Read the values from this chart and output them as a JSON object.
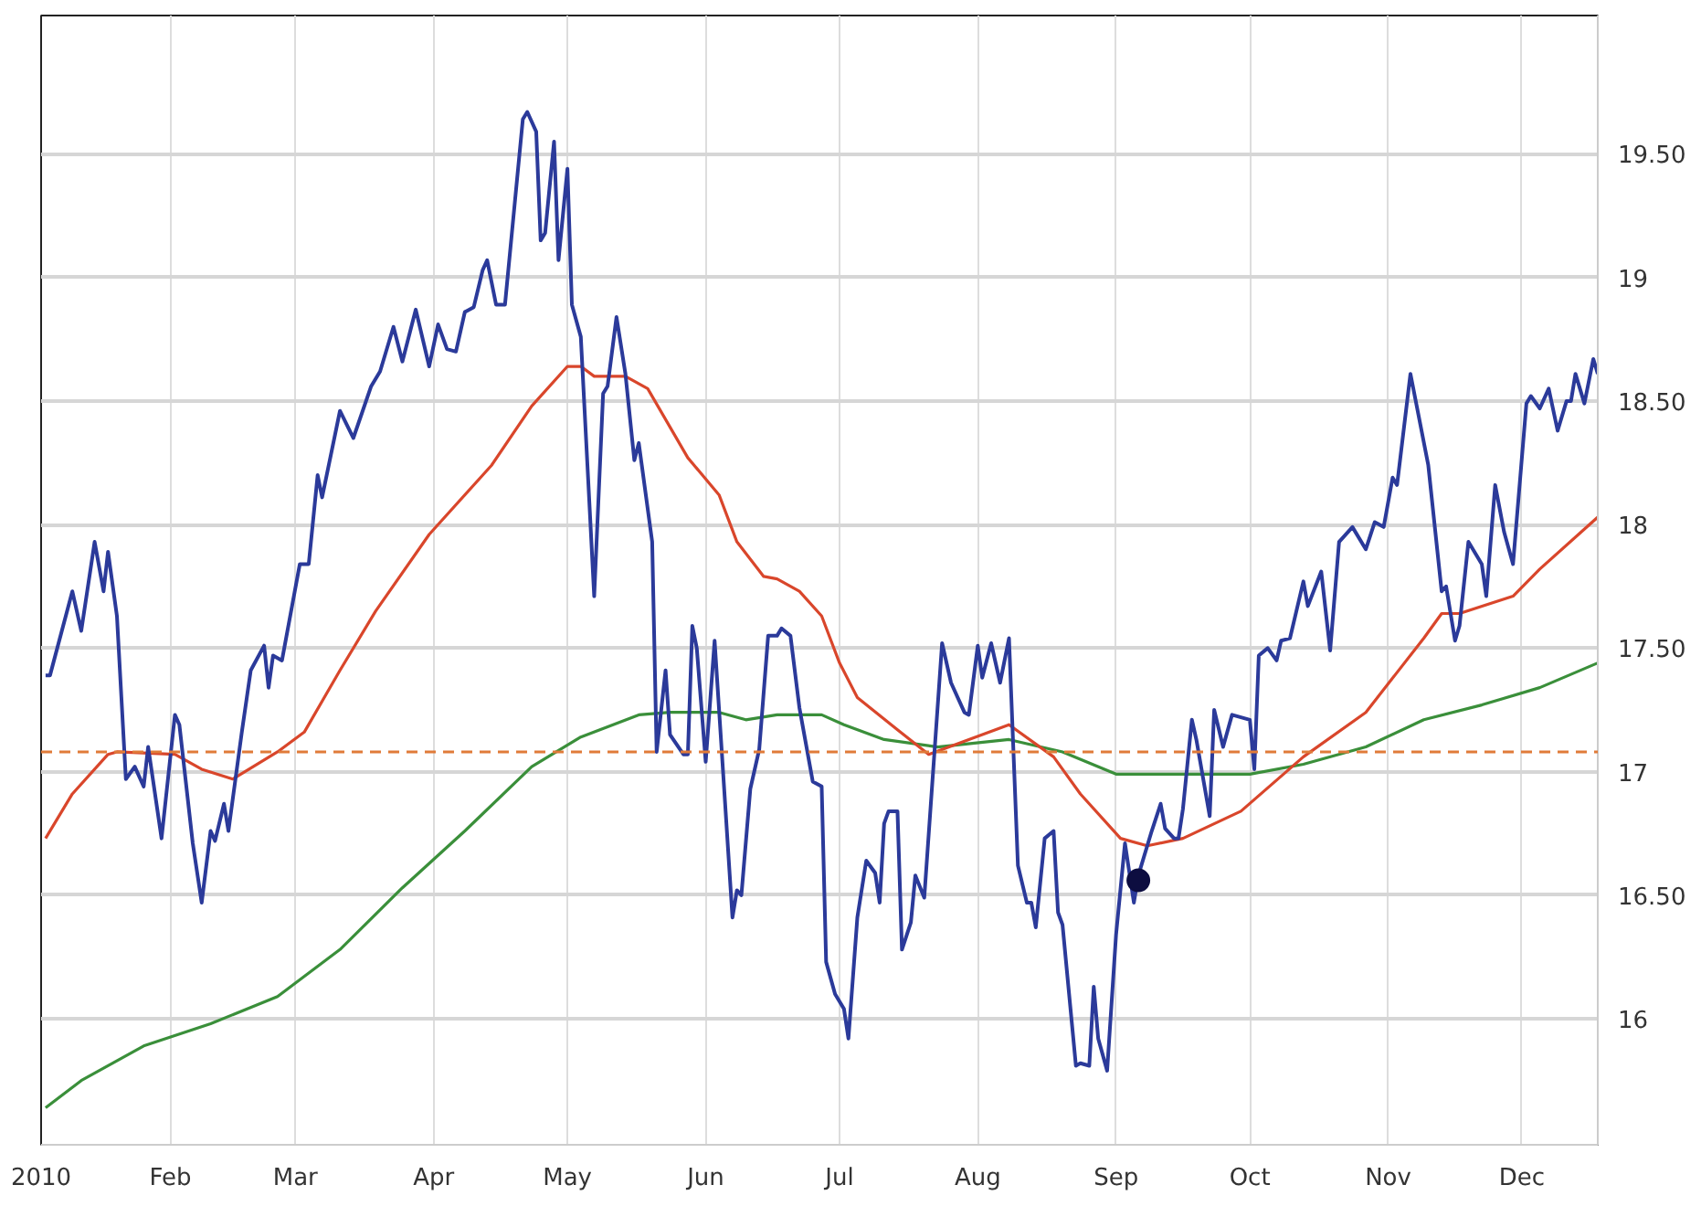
{
  "chart_data": {
    "type": "line",
    "line_style": "solid",
    "grid": true,
    "xlim": [
      "2010-01-03",
      "2010-12-18"
    ],
    "xticks": [
      {
        "value": "2010-01-03",
        "label": "2010"
      },
      {
        "value": "2010-02-01",
        "label": "Feb"
      },
      {
        "value": "2010-03-01",
        "label": "Mar"
      },
      {
        "value": "2010-04-01",
        "label": "Apr"
      },
      {
        "value": "2010-05-01",
        "label": "May"
      },
      {
        "value": "2010-06-01",
        "label": "Jun"
      },
      {
        "value": "2010-07-01",
        "label": "Jul"
      },
      {
        "value": "2010-08-01",
        "label": "Aug"
      },
      {
        "value": "2010-09-01",
        "label": "Sep"
      },
      {
        "value": "2010-10-01",
        "label": "Oct"
      },
      {
        "value": "2010-11-01",
        "label": "Nov"
      },
      {
        "value": "2010-12-01",
        "label": "Dec"
      }
    ],
    "ylim": [
      15.49,
      20.06
    ],
    "yticks": [
      16,
      {
        "value": 16.5,
        "label": "16.50"
      },
      17,
      {
        "value": 17.5,
        "label": "17.50"
      },
      18,
      {
        "value": 18.5,
        "label": "18.50"
      },
      19,
      {
        "value": 19.5,
        "label": "19.50"
      }
    ],
    "ref_lines": [
      {
        "axis": "y",
        "value": 17.08,
        "color": "#e07b39",
        "line_style": "dashed"
      }
    ],
    "series": [
      {
        "color": "#3a8f3a",
        "x": [
          "2010-01-04",
          "2010-01-12",
          "2010-01-26",
          "2010-02-10",
          "2010-02-25",
          "2010-03-11",
          "2010-03-25",
          "2010-04-08",
          "2010-04-23",
          "2010-05-04",
          "2010-05-17",
          "2010-05-24",
          "2010-06-04",
          "2010-06-10",
          "2010-06-17",
          "2010-06-27",
          "2010-07-02",
          "2010-07-11",
          "2010-07-23",
          "2010-08-08",
          "2010-08-20",
          "2010-09-01",
          "2010-09-07",
          "2010-10-01",
          "2010-10-13",
          "2010-10-27",
          "2010-11-09",
          "2010-11-22",
          "2010-12-05",
          "2010-12-18"
        ],
        "values": [
          15.64,
          15.75,
          15.89,
          15.98,
          16.09,
          16.28,
          16.53,
          16.76,
          17.02,
          17.14,
          17.23,
          17.24,
          17.24,
          17.21,
          17.23,
          17.23,
          17.19,
          17.13,
          17.1,
          17.13,
          17.08,
          16.99,
          16.99,
          16.99,
          17.03,
          17.1,
          17.21,
          17.27,
          17.34,
          17.44
        ]
      },
      {
        "color": "#d9462b",
        "x": [
          "2010-01-04",
          "2010-01-10",
          "2010-01-18",
          "2010-01-20",
          "2010-02-02",
          "2010-02-08",
          "2010-02-15",
          "2010-02-25",
          "2010-03-03",
          "2010-03-11",
          "2010-03-19",
          "2010-03-31",
          "2010-04-14",
          "2010-04-23",
          "2010-05-01",
          "2010-05-04",
          "2010-05-07",
          "2010-05-14",
          "2010-05-19",
          "2010-05-28",
          "2010-06-04",
          "2010-06-08",
          "2010-06-14",
          "2010-06-17",
          "2010-06-22",
          "2010-06-27",
          "2010-07-01",
          "2010-07-05",
          "2010-07-14",
          "2010-07-21",
          "2010-07-30",
          "2010-08-08",
          "2010-08-18",
          "2010-08-24",
          "2010-09-02",
          "2010-09-08",
          "2010-09-16",
          "2010-09-29",
          "2010-10-13",
          "2010-10-27",
          "2010-11-09",
          "2010-11-13",
          "2010-11-17",
          "2010-11-29",
          "2010-12-05",
          "2010-12-18"
        ],
        "values": [
          16.73,
          16.91,
          17.07,
          17.08,
          17.07,
          17.01,
          16.97,
          17.08,
          17.16,
          17.41,
          17.65,
          17.96,
          18.24,
          18.48,
          18.64,
          18.64,
          18.6,
          18.6,
          18.55,
          18.27,
          18.12,
          17.93,
          17.79,
          17.78,
          17.73,
          17.63,
          17.44,
          17.3,
          17.17,
          17.07,
          17.13,
          17.19,
          17.06,
          16.91,
          16.73,
          16.7,
          16.73,
          16.84,
          17.06,
          17.24,
          17.54,
          17.64,
          17.64,
          17.71,
          17.82,
          18.03
        ]
      },
      {
        "color": "#2b3a9a",
        "x": [
          "2010-01-04",
          "2010-01-05",
          "2010-01-10",
          "2010-01-12",
          "2010-01-15",
          "2010-01-17",
          "2010-01-18",
          "2010-01-20",
          "2010-01-22",
          "2010-01-24",
          "2010-01-26",
          "2010-01-27",
          "2010-01-30",
          "2010-02-02",
          "2010-02-03",
          "2010-02-06",
          "2010-02-08",
          "2010-02-10",
          "2010-02-11",
          "2010-02-13",
          "2010-02-14",
          "2010-02-17",
          "2010-02-19",
          "2010-02-22",
          "2010-02-23",
          "2010-02-24",
          "2010-02-26",
          "2010-03-02",
          "2010-03-04",
          "2010-03-06",
          "2010-03-07",
          "2010-03-11",
          "2010-03-14",
          "2010-03-18",
          "2010-03-20",
          "2010-03-23",
          "2010-03-25",
          "2010-03-28",
          "2010-03-31",
          "2010-04-02",
          "2010-04-04",
          "2010-04-06",
          "2010-04-08",
          "2010-04-10",
          "2010-04-12",
          "2010-04-13",
          "2010-04-15",
          "2010-04-17",
          "2010-04-21",
          "2010-04-22",
          "2010-04-24",
          "2010-04-25",
          "2010-04-26",
          "2010-04-28",
          "2010-04-29",
          "2010-05-01",
          "2010-05-02",
          "2010-05-04",
          "2010-05-07",
          "2010-05-09",
          "2010-05-10",
          "2010-05-12",
          "2010-05-14",
          "2010-05-16",
          "2010-05-17",
          "2010-05-20",
          "2010-05-21",
          "2010-05-23",
          "2010-05-24",
          "2010-05-27",
          "2010-05-28",
          "2010-05-29",
          "2010-05-30",
          "2010-06-01",
          "2010-06-03",
          "2010-06-07",
          "2010-06-08",
          "2010-06-09",
          "2010-06-11",
          "2010-06-13",
          "2010-06-15",
          "2010-06-17",
          "2010-06-18",
          "2010-06-20",
          "2010-06-22",
          "2010-06-25",
          "2010-06-27",
          "2010-06-28",
          "2010-06-30",
          "2010-07-02",
          "2010-07-03",
          "2010-07-05",
          "2010-07-07",
          "2010-07-09",
          "2010-07-10",
          "2010-07-11",
          "2010-07-12",
          "2010-07-14",
          "2010-07-15",
          "2010-07-17",
          "2010-07-18",
          "2010-07-20",
          "2010-07-24",
          "2010-07-26",
          "2010-07-29",
          "2010-07-30",
          "2010-08-01",
          "2010-08-02",
          "2010-08-04",
          "2010-08-06",
          "2010-08-08",
          "2010-08-10",
          "2010-08-12",
          "2010-08-13",
          "2010-08-14",
          "2010-08-16",
          "2010-08-18",
          "2010-08-19",
          "2010-08-20",
          "2010-08-23",
          "2010-08-24",
          "2010-08-26",
          "2010-08-27",
          "2010-08-28",
          "2010-08-30",
          "2010-09-01",
          "2010-09-03",
          "2010-09-05",
          "2010-09-06",
          "2010-09-09",
          "2010-09-11",
          "2010-09-12",
          "2010-09-14",
          "2010-09-15",
          "2010-09-16",
          "2010-09-18",
          "2010-09-19",
          "2010-09-22",
          "2010-09-23",
          "2010-09-25",
          "2010-09-27",
          "2010-10-01",
          "2010-10-02",
          "2010-10-03",
          "2010-10-05",
          "2010-10-07",
          "2010-10-08",
          "2010-10-10",
          "2010-10-13",
          "2010-10-14",
          "2010-10-17",
          "2010-10-19",
          "2010-10-21",
          "2010-10-24",
          "2010-10-27",
          "2010-10-29",
          "2010-10-31",
          "2010-11-02",
          "2010-11-03",
          "2010-11-06",
          "2010-11-10",
          "2010-11-13",
          "2010-11-14",
          "2010-11-16",
          "2010-11-17",
          "2010-11-19",
          "2010-11-22",
          "2010-11-23",
          "2010-11-25",
          "2010-11-27",
          "2010-11-29",
          "2010-12-02",
          "2010-12-03",
          "2010-12-05",
          "2010-12-07",
          "2010-12-09",
          "2010-12-11",
          "2010-12-12",
          "2010-12-13",
          "2010-12-15",
          "2010-12-17",
          "2010-12-18"
        ],
        "values": [
          17.39,
          17.39,
          17.73,
          17.57,
          17.93,
          17.73,
          17.89,
          17.63,
          16.97,
          17.02,
          16.94,
          17.1,
          16.73,
          17.23,
          17.19,
          16.71,
          16.47,
          16.76,
          16.72,
          16.87,
          16.76,
          17.16,
          17.41,
          17.51,
          17.34,
          17.47,
          17.45,
          17.84,
          17.84,
          18.2,
          18.11,
          18.46,
          18.35,
          18.56,
          18.62,
          18.8,
          18.66,
          18.87,
          18.64,
          18.81,
          18.71,
          18.7,
          18.86,
          18.88,
          19.03,
          19.07,
          18.89,
          18.89,
          19.64,
          19.67,
          19.59,
          19.15,
          19.18,
          19.55,
          19.07,
          19.44,
          18.89,
          18.76,
          17.71,
          18.53,
          18.56,
          18.84,
          18.61,
          18.26,
          18.33,
          17.93,
          17.08,
          17.41,
          17.15,
          17.07,
          17.07,
          17.59,
          17.5,
          17.04,
          17.53,
          16.41,
          16.52,
          16.5,
          16.93,
          17.09,
          17.55,
          17.55,
          17.58,
          17.55,
          17.26,
          16.96,
          16.94,
          16.23,
          16.1,
          16.04,
          15.92,
          16.41,
          16.64,
          16.59,
          16.47,
          16.79,
          16.84,
          16.84,
          16.28,
          16.39,
          16.58,
          16.49,
          17.52,
          17.36,
          17.24,
          17.23,
          17.51,
          17.38,
          17.52,
          17.36,
          17.54,
          16.62,
          16.47,
          16.47,
          16.37,
          16.73,
          16.76,
          16.43,
          16.38,
          15.81,
          15.82,
          15.81,
          16.13,
          15.92,
          15.79,
          16.34,
          16.71,
          16.47,
          16.58,
          16.76,
          16.87,
          16.77,
          16.73,
          16.73,
          16.85,
          17.21,
          17.13,
          16.82,
          17.25,
          17.1,
          17.23,
          17.21,
          17.01,
          17.47,
          17.5,
          17.45,
          17.53,
          17.54,
          17.77,
          17.67,
          17.81,
          17.49,
          17.93,
          17.99,
          17.9,
          18.01,
          17.99,
          18.19,
          18.16,
          18.61,
          18.24,
          17.73,
          17.75,
          17.53,
          17.59,
          17.93,
          17.84,
          17.71,
          18.16,
          17.97,
          17.84,
          18.49,
          18.52,
          18.47,
          18.55,
          18.38,
          18.5,
          18.5,
          18.61,
          18.49,
          18.67,
          18.61
        ]
      },
      {
        "type": "scatter",
        "marker": "circle",
        "color": "#0d0d40",
        "x": [
          "2010-09-06"
        ],
        "values": [
          16.56
        ]
      }
    ]
  }
}
